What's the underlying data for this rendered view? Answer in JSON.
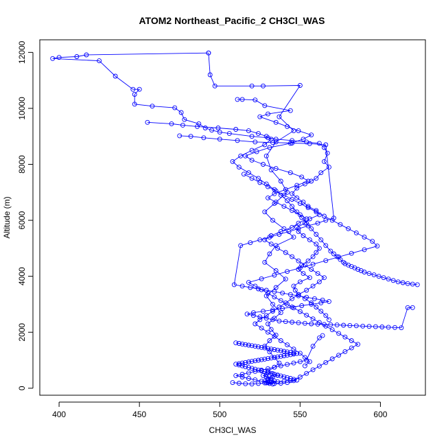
{
  "chart_data": {
    "type": "line",
    "title": "ATOM2 Northeast_Pacific_2 CH3Cl_WAS",
    "xlabel": "CH3Cl_WAS",
    "ylabel": "Altitude (m)",
    "xlim": [
      388,
      628
    ],
    "ylim": [
      -250,
      12450
    ],
    "xticks": [
      400,
      450,
      500,
      550,
      600
    ],
    "yticks": [
      0,
      2000,
      4000,
      6000,
      8000,
      10000,
      12000
    ],
    "grid": false,
    "legend": "none",
    "color": "#0000ff",
    "marker": "open-circle",
    "series": [
      {
        "x": [
          493,
          417,
          411,
          400,
          396,
          425,
          435,
          446,
          450,
          447,
          447,
          458,
          472,
          476,
          478,
          487,
          491,
          495,
          500,
          506,
          520,
          530,
          535,
          545,
          554,
          562,
          565,
          567,
          565,
          568,
          563,
          560,
          557,
          553,
          548,
          545,
          548,
          552,
          555,
          560,
          562,
          556,
          553,
          548,
          549,
          552,
          556,
          560,
          562,
          560,
          558,
          555,
          551,
          549,
          552,
          556,
          550,
          546,
          547,
          549,
          553,
          557,
          560,
          563,
          566,
          568
        ],
        "y": [
          11980,
          11910,
          11850,
          11820,
          11780,
          11700,
          11150,
          10680,
          10680,
          10500,
          10150,
          10080,
          10020,
          9850,
          9600,
          9450,
          9300,
          9220,
          9150,
          9100,
          9000,
          8950,
          8900,
          8850,
          8800,
          8750,
          8600,
          8400,
          8100,
          7900,
          7700,
          7500,
          7400,
          7300,
          7150,
          6950,
          6800,
          6650,
          6500,
          6350,
          6200,
          6050,
          5900,
          5750,
          5600,
          5450,
          5300,
          5150,
          5000,
          4850,
          4700,
          4550,
          4400,
          4250,
          4100,
          3950,
          3800,
          3650,
          3500,
          3350,
          3200,
          3050,
          2900,
          2750,
          2600,
          2450
        ]
      },
      {
        "x": [
          493,
          494,
          497,
          520,
          527,
          550,
          537,
          546,
          535,
          529,
          532,
          538,
          542,
          534,
          528,
          533,
          540,
          546,
          535,
          531,
          528,
          535,
          541,
          535,
          529,
          533,
          538,
          534,
          530,
          532,
          535,
          531,
          528,
          531,
          534,
          537,
          534,
          530,
          533,
          536,
          533,
          530,
          532,
          534,
          531,
          529,
          531,
          533,
          530,
          528,
          530,
          532,
          529,
          527,
          529
        ],
        "y": [
          11980,
          11200,
          10800,
          10800,
          10800,
          10820,
          9700,
          9200,
          8800,
          8300,
          7800,
          7400,
          7000,
          6600,
          6300,
          6000,
          5700,
          5400,
          5100,
          4800,
          4500,
          4200,
          3900,
          3600,
          3300,
          3000,
          2700,
          2500,
          2300,
          2100,
          1900,
          1700,
          1500,
          1300,
          1100,
          900,
          750,
          600,
          520,
          460,
          400,
          340,
          300,
          260,
          220,
          190,
          170,
          150,
          200,
          250,
          300,
          350,
          400,
          450,
          500
        ]
      },
      {
        "x": [
          511,
          514,
          522,
          528,
          544,
          530,
          525,
          535,
          542,
          549,
          557,
          552,
          544,
          531,
          523,
          516,
          520,
          527,
          535,
          544,
          551,
          555,
          548,
          541,
          534,
          530,
          535,
          540,
          545,
          550,
          554,
          549,
          545,
          538,
          532,
          528,
          532,
          536,
          541,
          545,
          549,
          553,
          557,
          561,
          565,
          562,
          558,
          554,
          549,
          545,
          541,
          537,
          533,
          529,
          525,
          522,
          526,
          530,
          534,
          538,
          542,
          546,
          550,
          553,
          556,
          553
        ],
        "y": [
          10320,
          10320,
          10300,
          10100,
          9920,
          9800,
          9700,
          9500,
          9350,
          9200,
          9050,
          8900,
          8750,
          8600,
          8450,
          8300,
          8150,
          8000,
          7850,
          7700,
          7550,
          7400,
          7250,
          7100,
          6950,
          6800,
          6650,
          6500,
          6350,
          6200,
          6050,
          5900,
          5750,
          5600,
          5450,
          5300,
          5150,
          5000,
          4850,
          4700,
          4550,
          4400,
          4250,
          4100,
          3950,
          3800,
          3650,
          3500,
          3350,
          3200,
          3050,
          2900,
          2750,
          2600,
          2450,
          2300,
          2150,
          2000,
          1850,
          1700,
          1550,
          1400,
          1250,
          1100,
          950,
          800
        ]
      },
      {
        "x": [
          455,
          470,
          477,
          486,
          499,
          510,
          518,
          524,
          529,
          532,
          528,
          520,
          513,
          508,
          512,
          518,
          524,
          529,
          534,
          538,
          542,
          545,
          548,
          551,
          554,
          557,
          560,
          563,
          566,
          569,
          571,
          573,
          575,
          577,
          578,
          580,
          582,
          584,
          586,
          588,
          590,
          593,
          596,
          599,
          602,
          605,
          608,
          611,
          614,
          617,
          620,
          623
        ],
        "y": [
          9500,
          9450,
          9400,
          9350,
          9300,
          9250,
          9200,
          9100,
          9000,
          8900,
          8700,
          8500,
          8300,
          8100,
          7900,
          7700,
          7500,
          7300,
          7100,
          6900,
          6700,
          6500,
          6300,
          6100,
          5900,
          5700,
          5500,
          5300,
          5100,
          4900,
          4800,
          4700,
          4600,
          4500,
          4450,
          4400,
          4350,
          4300,
          4250,
          4200,
          4150,
          4100,
          4050,
          4000,
          3950,
          3900,
          3850,
          3800,
          3770,
          3740,
          3720,
          3700
        ]
      },
      {
        "x": [
          475,
          482,
          490,
          500,
          511,
          522,
          533,
          545,
          556,
          566,
          571,
          566,
          561,
          555,
          549,
          543,
          537,
          531,
          525,
          519,
          513,
          509,
          514,
          519,
          524,
          529,
          534,
          539,
          544,
          549,
          554,
          559,
          564,
          568,
          563,
          557,
          551,
          545,
          539,
          533,
          527,
          521,
          517,
          521,
          525,
          529,
          533,
          537,
          541,
          545,
          549,
          553,
          557,
          561,
          565,
          569,
          573,
          577,
          581,
          585,
          589,
          593,
          597,
          601,
          605,
          609,
          613,
          617,
          620
        ],
        "y": [
          9020,
          9000,
          8950,
          8900,
          8850,
          8800,
          8780,
          8760,
          8740,
          8700,
          6080,
          6000,
          5900,
          5800,
          5700,
          5600,
          5500,
          5400,
          5300,
          5200,
          5100,
          3700,
          3650,
          3600,
          3550,
          3500,
          3450,
          3400,
          3350,
          3300,
          3250,
          3200,
          3150,
          3100,
          3050,
          3000,
          2950,
          2900,
          2850,
          2800,
          2750,
          2700,
          2650,
          2600,
          2550,
          2500,
          2450,
          2400,
          2380,
          2360,
          2340,
          2320,
          2300,
          2290,
          2280,
          2270,
          2260,
          2250,
          2240,
          2230,
          2220,
          2210,
          2200,
          2190,
          2180,
          2170,
          2160,
          2880,
          2880
        ]
      },
      {
        "x": [
          515,
          520,
          525,
          530,
          535,
          540,
          545,
          550,
          555,
          560,
          565,
          570,
          575,
          580,
          585,
          590,
          595,
          598,
          590,
          582,
          574,
          566,
          558,
          550,
          542,
          534,
          526,
          518,
          522,
          526,
          530,
          534,
          538,
          542,
          546,
          550,
          554,
          558,
          562,
          566,
          570,
          574,
          578,
          582,
          586,
          582,
          578,
          574,
          570,
          566,
          562,
          558,
          554,
          550,
          546,
          542,
          538,
          534,
          530,
          526,
          522,
          518,
          514,
          510,
          514,
          518,
          522,
          526,
          530,
          534,
          538,
          542,
          546,
          550,
          554,
          558,
          562,
          564
        ],
        "y": [
          7650,
          7500,
          7350,
          7200,
          7050,
          6900,
          6750,
          6600,
          6450,
          6300,
          6150,
          6000,
          5850,
          5700,
          5550,
          5400,
          5250,
          5080,
          4950,
          4820,
          4690,
          4560,
          4430,
          4300,
          4170,
          4040,
          3910,
          3780,
          3650,
          3520,
          3390,
          3260,
          3130,
          3000,
          2870,
          2740,
          2610,
          2480,
          2350,
          2220,
          2090,
          1960,
          1830,
          1700,
          1570,
          1440,
          1310,
          1180,
          1050,
          920,
          790,
          660,
          530,
          400,
          270,
          200,
          180,
          170,
          200,
          250,
          300,
          350,
          400,
          450,
          500,
          550,
          600,
          650,
          700,
          750,
          800,
          850,
          900,
          950,
          1000,
          1500,
          1800,
          1880
        ]
      },
      {
        "x": [
          508,
          512,
          516,
          520,
          524,
          528,
          532,
          536,
          540,
          544,
          548,
          546,
          544,
          542,
          540,
          538,
          536,
          534,
          532,
          530,
          528,
          526,
          524,
          522,
          520,
          518,
          516,
          514,
          512,
          510,
          512,
          514,
          516,
          518,
          520,
          522,
          524,
          526,
          528,
          530,
          532,
          534,
          536,
          538,
          540,
          542,
          544,
          546,
          548,
          546,
          544,
          542,
          540,
          538,
          536,
          534,
          532,
          530,
          528,
          526,
          524,
          522,
          520,
          518,
          516,
          514,
          512,
          510
        ],
        "y": [
          200,
          180,
          160,
          150,
          170,
          190,
          210,
          230,
          250,
          270,
          290,
          320,
          350,
          380,
          410,
          440,
          470,
          500,
          530,
          560,
          590,
          620,
          650,
          680,
          710,
          740,
          770,
          800,
          830,
          860,
          880,
          900,
          920,
          940,
          960,
          980,
          1000,
          1020,
          1040,
          1060,
          1080,
          1100,
          1120,
          1140,
          1160,
          1180,
          1200,
          1220,
          1240,
          1260,
          1280,
          1300,
          1320,
          1340,
          1360,
          1380,
          1400,
          1420,
          1440,
          1460,
          1480,
          1500,
          1520,
          1540,
          1560,
          1580,
          1600,
          1620
        ]
      }
    ]
  }
}
